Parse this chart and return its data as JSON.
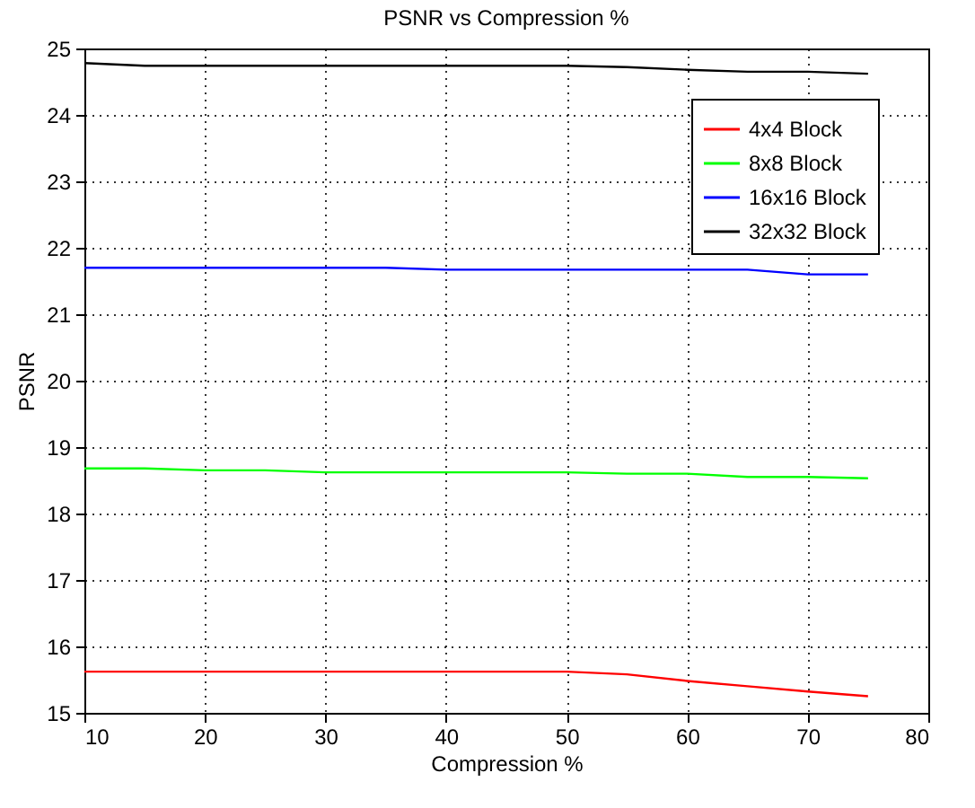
{
  "chart_data": {
    "type": "line",
    "title": "PSNR vs Compression %",
    "xlabel": "Compression %",
    "ylabel": "PSNR",
    "x": [
      10,
      15,
      20,
      25,
      30,
      35,
      40,
      45,
      50,
      55,
      60,
      65,
      70,
      75
    ],
    "series": [
      {
        "name": "4x4 Block",
        "color": "#ff0000",
        "values": [
          15.62,
          15.62,
          15.62,
          15.62,
          15.62,
          15.62,
          15.62,
          15.62,
          15.62,
          15.58,
          15.48,
          15.4,
          15.32,
          15.25
        ]
      },
      {
        "name": "8x8 Block",
        "color": "#00ff00",
        "values": [
          18.68,
          18.68,
          18.65,
          18.65,
          18.62,
          18.62,
          18.62,
          18.62,
          18.62,
          18.6,
          18.6,
          18.55,
          18.55,
          18.53
        ]
      },
      {
        "name": "16x16 Block",
        "color": "#0000ff",
        "values": [
          21.7,
          21.7,
          21.7,
          21.7,
          21.7,
          21.7,
          21.67,
          21.67,
          21.67,
          21.67,
          21.67,
          21.67,
          21.6,
          21.6
        ]
      },
      {
        "name": "32x32 Block",
        "color": "#000000",
        "values": [
          24.78,
          24.74,
          24.74,
          24.74,
          24.74,
          24.74,
          24.74,
          24.74,
          24.74,
          24.72,
          24.68,
          24.65,
          24.65,
          24.62
        ]
      }
    ],
    "xlim": [
      10,
      80
    ],
    "xticks": [
      10,
      20,
      30,
      40,
      50,
      60,
      70,
      80
    ],
    "ylim": [
      15,
      25
    ],
    "yticks": [
      15,
      16,
      17,
      18,
      19,
      20,
      21,
      22,
      23,
      24,
      25
    ],
    "grid": true,
    "legend": "top right",
    "line_style": "solid",
    "marker": "none"
  }
}
